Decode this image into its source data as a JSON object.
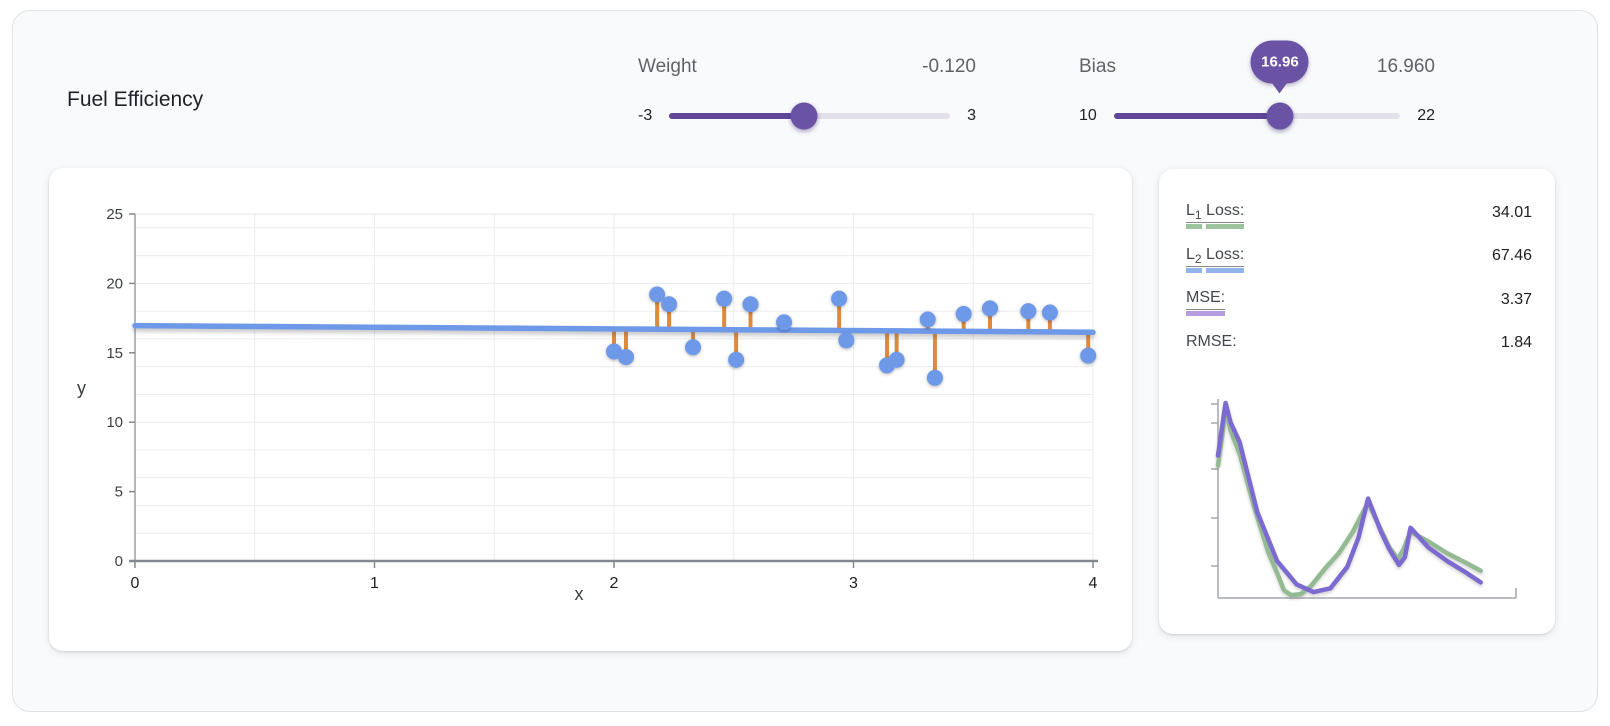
{
  "header": {
    "title": "Fuel Efficiency"
  },
  "controls": {
    "weight": {
      "label": "Weight",
      "value_display": "-0.120",
      "value": -0.12,
      "min": -3,
      "max": 3,
      "min_label": "-3",
      "max_label": "3"
    },
    "bias": {
      "label": "Bias",
      "value_display": "16.960",
      "value": 16.96,
      "min": 10,
      "max": 22,
      "min_label": "10",
      "max_label": "22",
      "bubble": "16.96"
    }
  },
  "colors": {
    "slider_purple": "#6a53a4",
    "slider_track": "#e3e0ea",
    "point_blue": "#6e99e9",
    "residual_orange": "#dd8a3e",
    "l1_green": "#9cc49c",
    "l2_blue": "#92b4ec",
    "mse_purple": "#b79ee2",
    "loss_curve_green": "#93ba93",
    "loss_curve_purple": "#7d6ad0"
  },
  "metrics": {
    "rows": [
      {
        "prefix": "L",
        "sub": "1",
        "rest": "Loss:",
        "value": "34.01",
        "swatch": "#9cc49c"
      },
      {
        "prefix": "L",
        "sub": "2",
        "rest": "Loss:",
        "value": "67.46",
        "swatch": "#92b4ec"
      },
      {
        "prefix": "MSE:",
        "sub": "",
        "rest": "",
        "value": "3.37",
        "swatch": "#b79ee2"
      },
      {
        "prefix": "RMSE:",
        "sub": "",
        "rest": "",
        "value": "1.84",
        "swatch": ""
      }
    ]
  },
  "chart_data": [
    {
      "type": "scatter",
      "title": "Fuel Efficiency",
      "xlabel": "x",
      "ylabel": "y",
      "xlim": [
        0,
        4
      ],
      "ylim": [
        0,
        25
      ],
      "xticks": [
        0,
        1,
        2,
        3,
        4
      ],
      "yticks": [
        0,
        5,
        10,
        15,
        20,
        25
      ],
      "x_grid_step": 0.5,
      "y_grid_step": 2,
      "grid": true,
      "legend": false,
      "points": [
        [
          2.0,
          15.1
        ],
        [
          2.05,
          14.7
        ],
        [
          2.18,
          19.2
        ],
        [
          2.23,
          18.5
        ],
        [
          2.33,
          15.4
        ],
        [
          2.46,
          18.9
        ],
        [
          2.51,
          14.5
        ],
        [
          2.57,
          18.5
        ],
        [
          2.71,
          17.2
        ],
        [
          2.94,
          18.9
        ],
        [
          2.97,
          15.9
        ],
        [
          3.14,
          14.1
        ],
        [
          3.18,
          14.5
        ],
        [
          3.31,
          17.4
        ],
        [
          3.34,
          13.2
        ],
        [
          3.46,
          17.8
        ],
        [
          3.57,
          18.2
        ],
        [
          3.73,
          18.0
        ],
        [
          3.82,
          17.9
        ],
        [
          3.98,
          14.8
        ]
      ],
      "model_line": {
        "weight": -0.12,
        "bias": 16.96
      },
      "residuals": true,
      "colors": {
        "point": "#6e99e9",
        "line": "#6e99e9",
        "residual": "#dd8a3e"
      }
    },
    {
      "type": "line",
      "title": "Loss over training (axes unlabeled)",
      "xlabel": "",
      "ylabel": "",
      "axes_labeled": false,
      "x_units": "percent-of-width",
      "y_units": "percent-of-height",
      "series": [
        {
          "name": "L1 Loss",
          "color": "#93ba93",
          "points": [
            [
              0,
              68
            ],
            [
              1.5,
              83
            ],
            [
              2.7,
              97
            ],
            [
              4.5,
              86
            ],
            [
              7.7,
              74
            ],
            [
              12.8,
              47
            ],
            [
              17.8,
              24
            ],
            [
              21,
              13
            ],
            [
              23.5,
              4
            ],
            [
              26,
              1.5
            ],
            [
              29.5,
              2
            ],
            [
              33,
              6
            ],
            [
              38,
              15
            ],
            [
              43,
              23
            ],
            [
              48,
              34
            ],
            [
              53.4,
              49
            ],
            [
              58,
              35
            ],
            [
              61,
              26
            ],
            [
              64,
              20
            ],
            [
              66,
              25
            ],
            [
              68.5,
              34
            ],
            [
              74.8,
              29
            ],
            [
              81.5,
              23
            ],
            [
              88.3,
              18
            ],
            [
              93.5,
              14
            ]
          ]
        },
        {
          "name": "MSE",
          "color": "#7d6ad0",
          "points": [
            [
              0,
              73
            ],
            [
              1.5,
              88
            ],
            [
              2.7,
              100
            ],
            [
              4.5,
              90
            ],
            [
              7.7,
              80
            ],
            [
              14,
              44
            ],
            [
              21,
              19
            ],
            [
              28,
              7
            ],
            [
              34,
              3
            ],
            [
              40,
              5
            ],
            [
              46,
              16
            ],
            [
              50,
              31
            ],
            [
              53.4,
              51
            ],
            [
              58,
              34
            ],
            [
              61,
              25
            ],
            [
              64.4,
              17
            ],
            [
              66.5,
              21
            ],
            [
              68.5,
              36
            ],
            [
              74.8,
              26
            ],
            [
              81.5,
              19
            ],
            [
              88.3,
              13
            ],
            [
              93.5,
              8
            ]
          ]
        }
      ],
      "y_axis_ticks": 5,
      "grid": false,
      "legend": false
    }
  ]
}
